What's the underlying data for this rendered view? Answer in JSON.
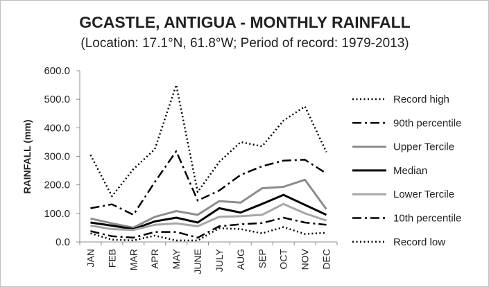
{
  "chart_data": {
    "type": "line",
    "title": "GCASTLE, ANTIGUA - MONTHLY RAINFALL",
    "subtitle": "(Location: 17.1°N, 61.8°W; Period of record: 1979-2013)",
    "ylabel": "RAINFALL (mm)",
    "xlabel": "",
    "ylim": [
      0,
      600
    ],
    "yticks": [
      "0.0",
      "100.0",
      "200.0",
      "300.0",
      "400.0",
      "500.0",
      "600.0"
    ],
    "categories": [
      "JAN",
      "FEB",
      "MAR",
      "APR",
      "MAY",
      "JUNE",
      "JULY",
      "AUG",
      "SEP",
      "OCT",
      "NOV",
      "DEC"
    ],
    "grid": false,
    "legend_position": "right",
    "series": [
      {
        "name": "Record high",
        "style": "dotted",
        "color": "#000000",
        "values": [
          305,
          160,
          255,
          325,
          550,
          175,
          280,
          350,
          335,
          425,
          475,
          315
        ]
      },
      {
        "name": "90th percentile",
        "style": "dashdot",
        "color": "#000000",
        "values": [
          118,
          132,
          95,
          210,
          318,
          145,
          180,
          235,
          265,
          285,
          288,
          240
        ]
      },
      {
        "name": "Upper Tercile",
        "style": "solid",
        "color": "#8c8c8c",
        "values": [
          82,
          65,
          50,
          88,
          108,
          95,
          143,
          138,
          188,
          193,
          218,
          115
        ]
      },
      {
        "name": "Median",
        "style": "solid",
        "color": "#000000",
        "values": [
          68,
          57,
          45,
          72,
          85,
          68,
          118,
          103,
          133,
          165,
          130,
          95
        ]
      },
      {
        "name": "Lower Tercile",
        "style": "solid",
        "color": "#a6a6a6",
        "values": [
          57,
          45,
          42,
          60,
          65,
          55,
          88,
          90,
          95,
          133,
          100,
          75
        ]
      },
      {
        "name": "10th percentile",
        "style": "dashdot",
        "color": "#000000",
        "values": [
          38,
          20,
          15,
          35,
          35,
          15,
          55,
          62,
          66,
          85,
          68,
          60
        ]
      },
      {
        "name": "Record low",
        "style": "dotted",
        "color": "#000000",
        "values": [
          30,
          8,
          5,
          22,
          5,
          5,
          48,
          45,
          30,
          52,
          28,
          32
        ]
      }
    ]
  }
}
